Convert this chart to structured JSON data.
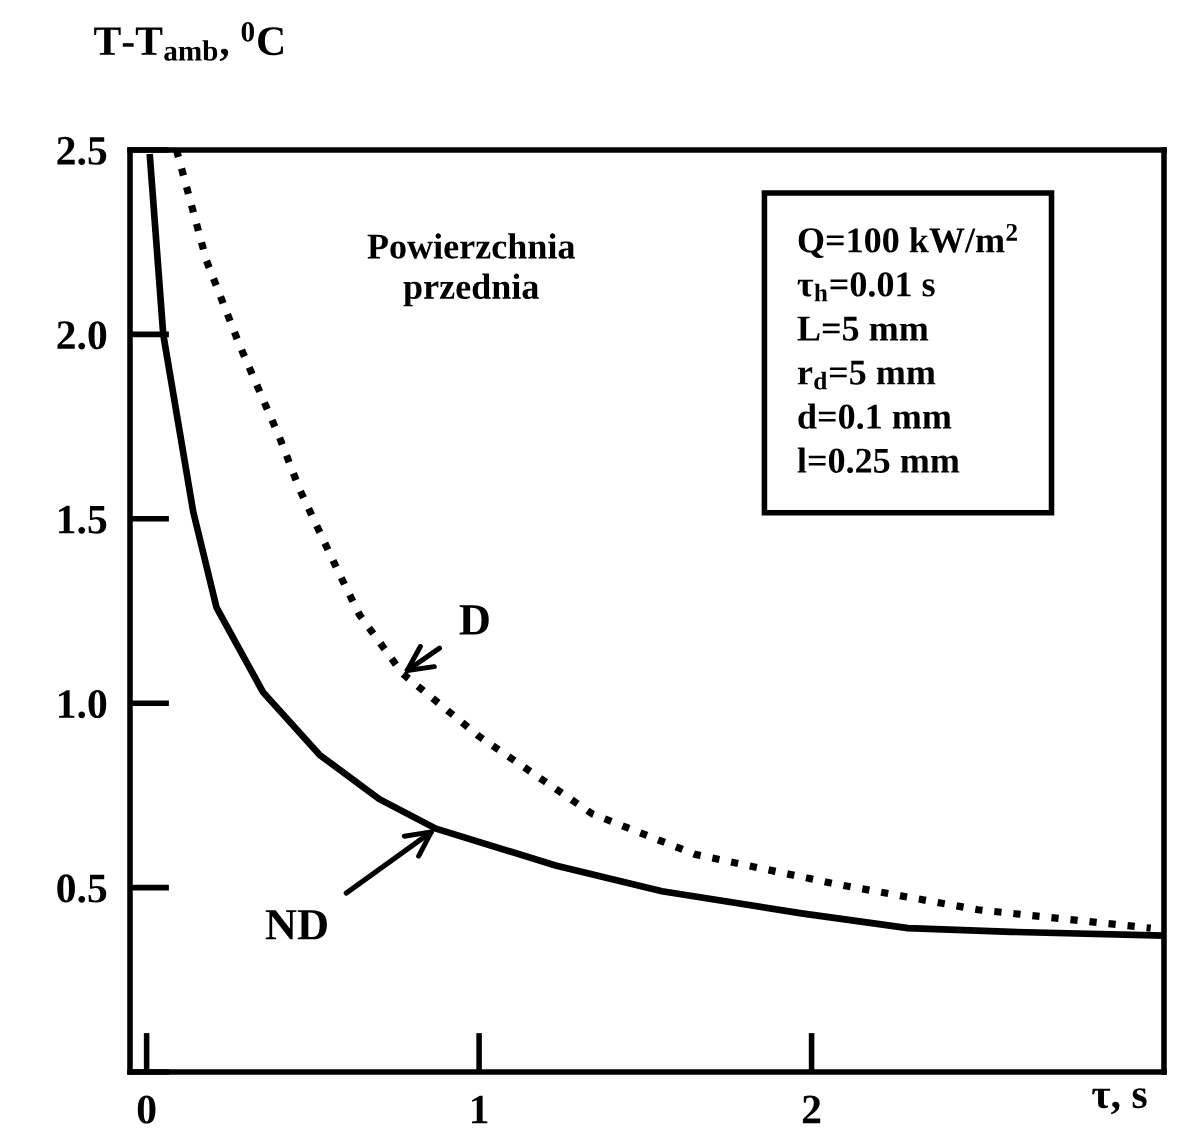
{
  "chart_data": {
    "type": "line",
    "xlabel": "τ, s",
    "ylabel": "T-T$_{amb}$, $^{0}$C",
    "xlim": [
      -0.05,
      3.06
    ],
    "ylim": [
      0,
      2.5
    ],
    "xticks": [
      0,
      1,
      2
    ],
    "yticks": [
      {
        "value": 0,
        "label": null
      },
      0.5,
      {
        "value": 1.0,
        "label": "1.0"
      },
      1.5,
      {
        "value": 2.0,
        "label": "2.0"
      },
      2.5
    ],
    "grid": false,
    "legend": false,
    "series": [
      {
        "name": "ND",
        "color": "#000000",
        "line_style": "solid",
        "x": [
          0.01,
          0.05,
          0.14,
          0.21,
          0.35,
          0.52,
          0.7,
          0.87,
          1.23,
          1.55,
          1.97,
          2.29,
          2.6,
          3.05
        ],
        "values": [
          2.48,
          2.0,
          1.52,
          1.26,
          1.03,
          0.86,
          0.74,
          0.66,
          0.56,
          0.49,
          0.43,
          0.39,
          0.38,
          0.37
        ]
      },
      {
        "name": "D",
        "color": "#000000",
        "line_style": "dotted",
        "x": [
          0.09,
          0.18,
          0.28,
          0.4,
          0.46,
          0.58,
          0.64,
          0.77,
          1.0,
          1.34,
          1.65,
          2.07,
          2.5,
          3.02
        ],
        "values": [
          2.5,
          2.2,
          1.97,
          1.72,
          1.58,
          1.35,
          1.24,
          1.08,
          0.91,
          0.7,
          0.59,
          0.51,
          0.44,
          0.39
        ]
      }
    ],
    "annotations": [
      "Powierzchnia\nprzednia",
      "Q=100 kW/m$^{2}$\nτ$_{h}$=0.01 s\nL=5 mm\nr$_{d}$=5 mm\nd=0.1 mm\nl=0.25 mm"
    ]
  }
}
